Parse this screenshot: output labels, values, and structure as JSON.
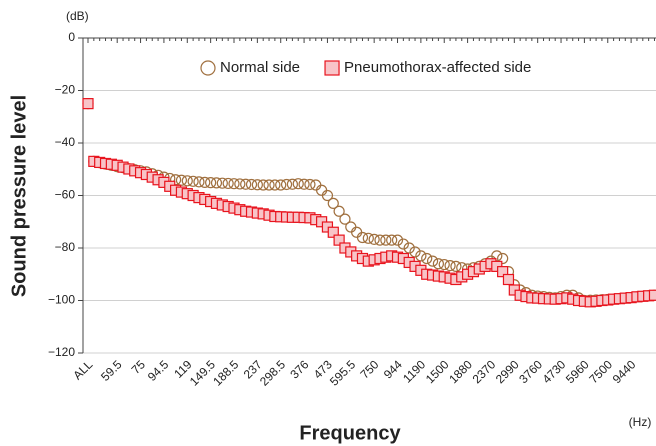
{
  "chart_data": {
    "type": "scatter",
    "y_unit": "(dB)",
    "x_unit": "(Hz)",
    "ylabel": "Sound pressure level",
    "xlabel": "Frequency",
    "categories": [
      "ALL",
      null,
      null,
      null,
      null,
      "59.5",
      null,
      null,
      null,
      "75",
      null,
      null,
      null,
      "94.5",
      null,
      null,
      null,
      "119",
      null,
      null,
      null,
      "149.5",
      null,
      null,
      null,
      "188.5",
      null,
      null,
      null,
      "237",
      null,
      null,
      null,
      "298.5",
      null,
      null,
      null,
      "376",
      null,
      null,
      null,
      "473",
      null,
      null,
      null,
      "595.5",
      null,
      null,
      null,
      "750",
      null,
      null,
      null,
      "944",
      null,
      null,
      null,
      "1190",
      null,
      null,
      null,
      "1500",
      null,
      null,
      null,
      "1880",
      null,
      null,
      null,
      "2370",
      null,
      null,
      null,
      "2990",
      null,
      null,
      null,
      "3760",
      null,
      null,
      null,
      "4730",
      null,
      null,
      null,
      "5960",
      null,
      null,
      null,
      "7500",
      null,
      null,
      null,
      "9440",
      null,
      null,
      null,
      null
    ],
    "ylim": [
      -120,
      0
    ],
    "yticks": [
      0,
      {
        "value": -20,
        "label": "−20"
      },
      {
        "value": -40,
        "label": "−40"
      },
      {
        "value": -60,
        "label": "−60"
      },
      {
        "value": -80,
        "label": "−80"
      },
      {
        "value": -100,
        "label": "−100"
      },
      {
        "value": -120,
        "label": "−120"
      }
    ],
    "grid": true,
    "legend_position": "top-right",
    "series": [
      {
        "name": "Normal side",
        "color": "#a0703f",
        "marker": "circle",
        "values": [
          -25,
          -47,
          -47.5,
          -48,
          -48.5,
          -49,
          -49.4,
          -49.8,
          -50.2,
          -50.6,
          -51,
          -51.7,
          -52.3,
          -53,
          -53.5,
          -54,
          -54.2,
          -54.4,
          -54.6,
          -54.8,
          -55,
          -55.1,
          -55.2,
          -55.3,
          -55.4,
          -55.5,
          -55.6,
          -55.7,
          -55.8,
          -55.9,
          -56,
          -56,
          -56,
          -56,
          -55.8,
          -55.7,
          -55.5,
          -55.7,
          -55.8,
          -56,
          -58,
          -60,
          -63,
          -66,
          -69,
          -72,
          -74,
          -76,
          -76.3,
          -76.7,
          -77,
          -77,
          -77,
          -77,
          -78.5,
          -80,
          -81.5,
          -83,
          -84,
          -85,
          -86,
          -86.3,
          -86.7,
          -87,
          -87.5,
          -88,
          -87.5,
          -87,
          -86,
          -85,
          -83,
          -84,
          -89,
          -94,
          -96,
          -97,
          -98,
          -98.3,
          -98.5,
          -98.8,
          -99,
          -98.5,
          -98,
          -98,
          -99,
          -100,
          -99.9,
          -99.8,
          -99.7,
          -99.6,
          -99.5,
          -99.3,
          -99.1,
          -98.9,
          -98.6,
          -98.4,
          -98.2,
          -98
        ]
      },
      {
        "name": "Pneumothorax-affected side",
        "color": "#e8141e",
        "fill": "#f8c4c8",
        "marker": "square",
        "values": [
          -25,
          -47,
          -47.4,
          -47.8,
          -48.1,
          -48.5,
          -49.2,
          -49.9,
          -50.6,
          -51.3,
          -52,
          -53,
          -54,
          -55,
          -56.5,
          -58,
          -58.7,
          -59.3,
          -60,
          -60.8,
          -61.5,
          -62.3,
          -63,
          -63.6,
          -64.2,
          -64.8,
          -65.4,
          -66,
          -66.3,
          -66.7,
          -67,
          -67.5,
          -68,
          -68.1,
          -68.2,
          -68.3,
          -68.3,
          -68.4,
          -68.5,
          -69.2,
          -70,
          -72,
          -74,
          -77,
          -80,
          -81.5,
          -83,
          -84,
          -85,
          -84.5,
          -84,
          -83.5,
          -83,
          -83.5,
          -84,
          -85.5,
          -87,
          -88.5,
          -90,
          -90.3,
          -90.7,
          -91,
          -91.5,
          -92,
          -91,
          -90,
          -89,
          -88,
          -87,
          -86,
          -87,
          -89,
          -92,
          -96,
          -98,
          -98.5,
          -99,
          -99.1,
          -99.3,
          -99.4,
          -99.5,
          -99.3,
          -99,
          -99.5,
          -100,
          -100.3,
          -100.5,
          -100.3,
          -100,
          -99.8,
          -99.5,
          -99.3,
          -99.1,
          -98.9,
          -98.6,
          -98.4,
          -98.2,
          -98
        ]
      }
    ]
  }
}
